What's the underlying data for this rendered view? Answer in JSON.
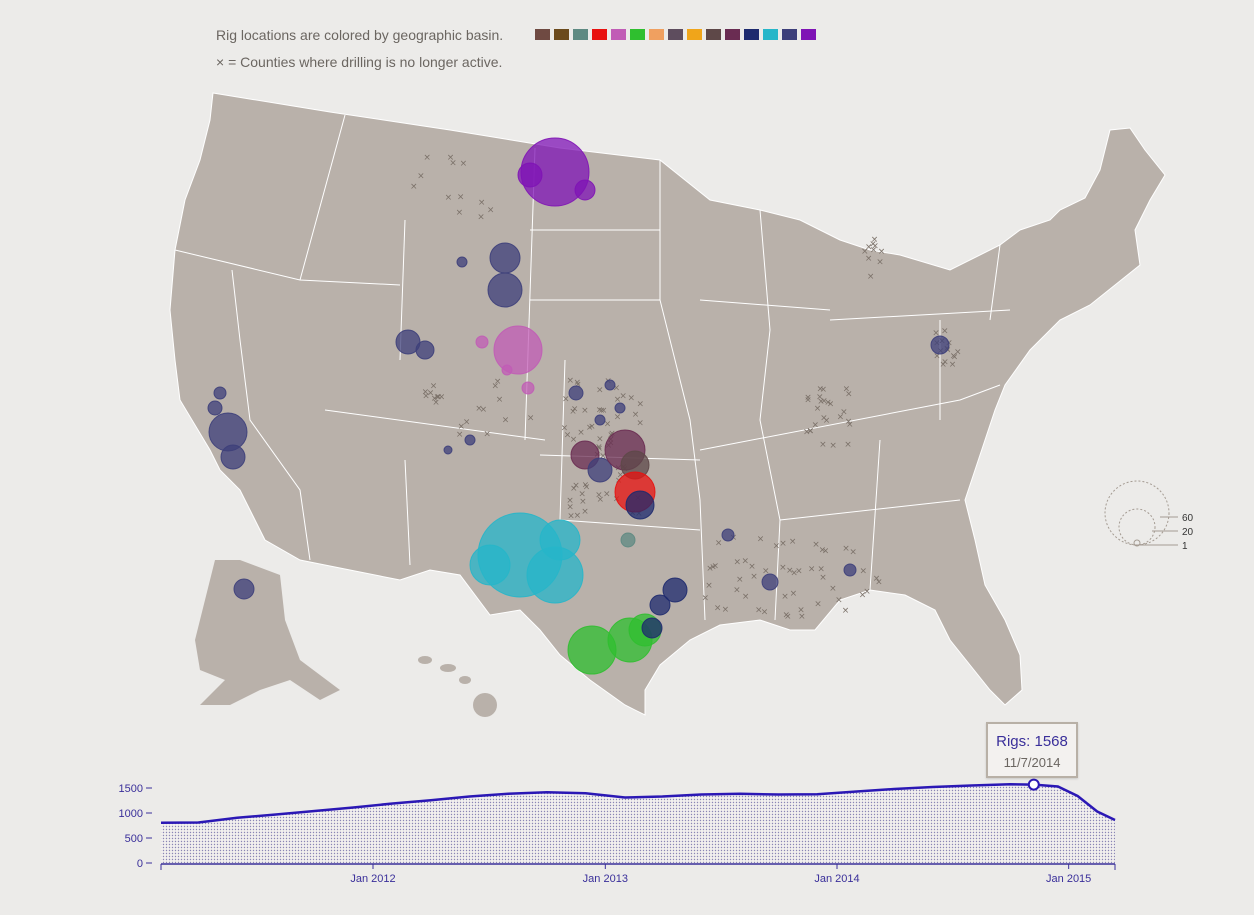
{
  "legend": {
    "basin_text": "Rig locations are colored by geographic basin.",
    "inactive_text": "× = Counties where drilling is no longer active.",
    "basin_colors": [
      "#6f4a42",
      "#6b4a1c",
      "#5e8a82",
      "#e8110f",
      "#c15cb6",
      "#2fbf2f",
      "#f0a060",
      "#5e4d5e",
      "#f0a51a",
      "#5e4848",
      "#6a2c52",
      "#1e2a6e",
      "#26b6c9",
      "#3d3f7a",
      "#7f13b5"
    ]
  },
  "size_legend": {
    "labels": [
      "60",
      "20",
      "1"
    ]
  },
  "tooltip": {
    "rigs": "Rigs: 1568",
    "date": "11/7/2014"
  },
  "chart_data": {
    "type": "area",
    "title": "",
    "xlabel": "",
    "ylabel": "",
    "x_ticks": [
      "Jan 2012",
      "Jan 2013",
      "Jan 2014",
      "Jan 2015"
    ],
    "y_ticks": [
      0,
      500,
      1000,
      1500
    ],
    "ylim": [
      0,
      1600
    ],
    "xlim": [
      "2011-02-01",
      "2015-03-15"
    ],
    "series": [
      {
        "x": [
          "2011-02-01",
          "2011-04-01",
          "2011-06-01",
          "2011-08-01",
          "2011-10-01",
          "2011-12-01",
          "2012-02-01",
          "2012-04-01",
          "2012-06-01",
          "2012-08-01",
          "2012-10-01",
          "2012-12-01",
          "2013-02-01",
          "2013-04-01",
          "2013-06-01",
          "2013-08-01",
          "2013-10-01",
          "2013-12-01",
          "2014-02-01",
          "2014-04-01",
          "2014-06-01",
          "2014-08-01",
          "2014-10-01",
          "2014-11-07",
          "2014-12-15",
          "2015-01-15",
          "2015-02-15",
          "2015-03-15"
        ],
        "values": [
          805,
          810,
          905,
          970,
          1040,
          1110,
          1190,
          1255,
          1330,
          1385,
          1415,
          1395,
          1310,
          1330,
          1370,
          1385,
          1370,
          1375,
          1430,
          1480,
          1520,
          1550,
          1575,
          1568,
          1530,
          1340,
          1030,
          860
        ]
      }
    ],
    "highlight": {
      "x": "2014-11-07",
      "y": 1568
    }
  }
}
